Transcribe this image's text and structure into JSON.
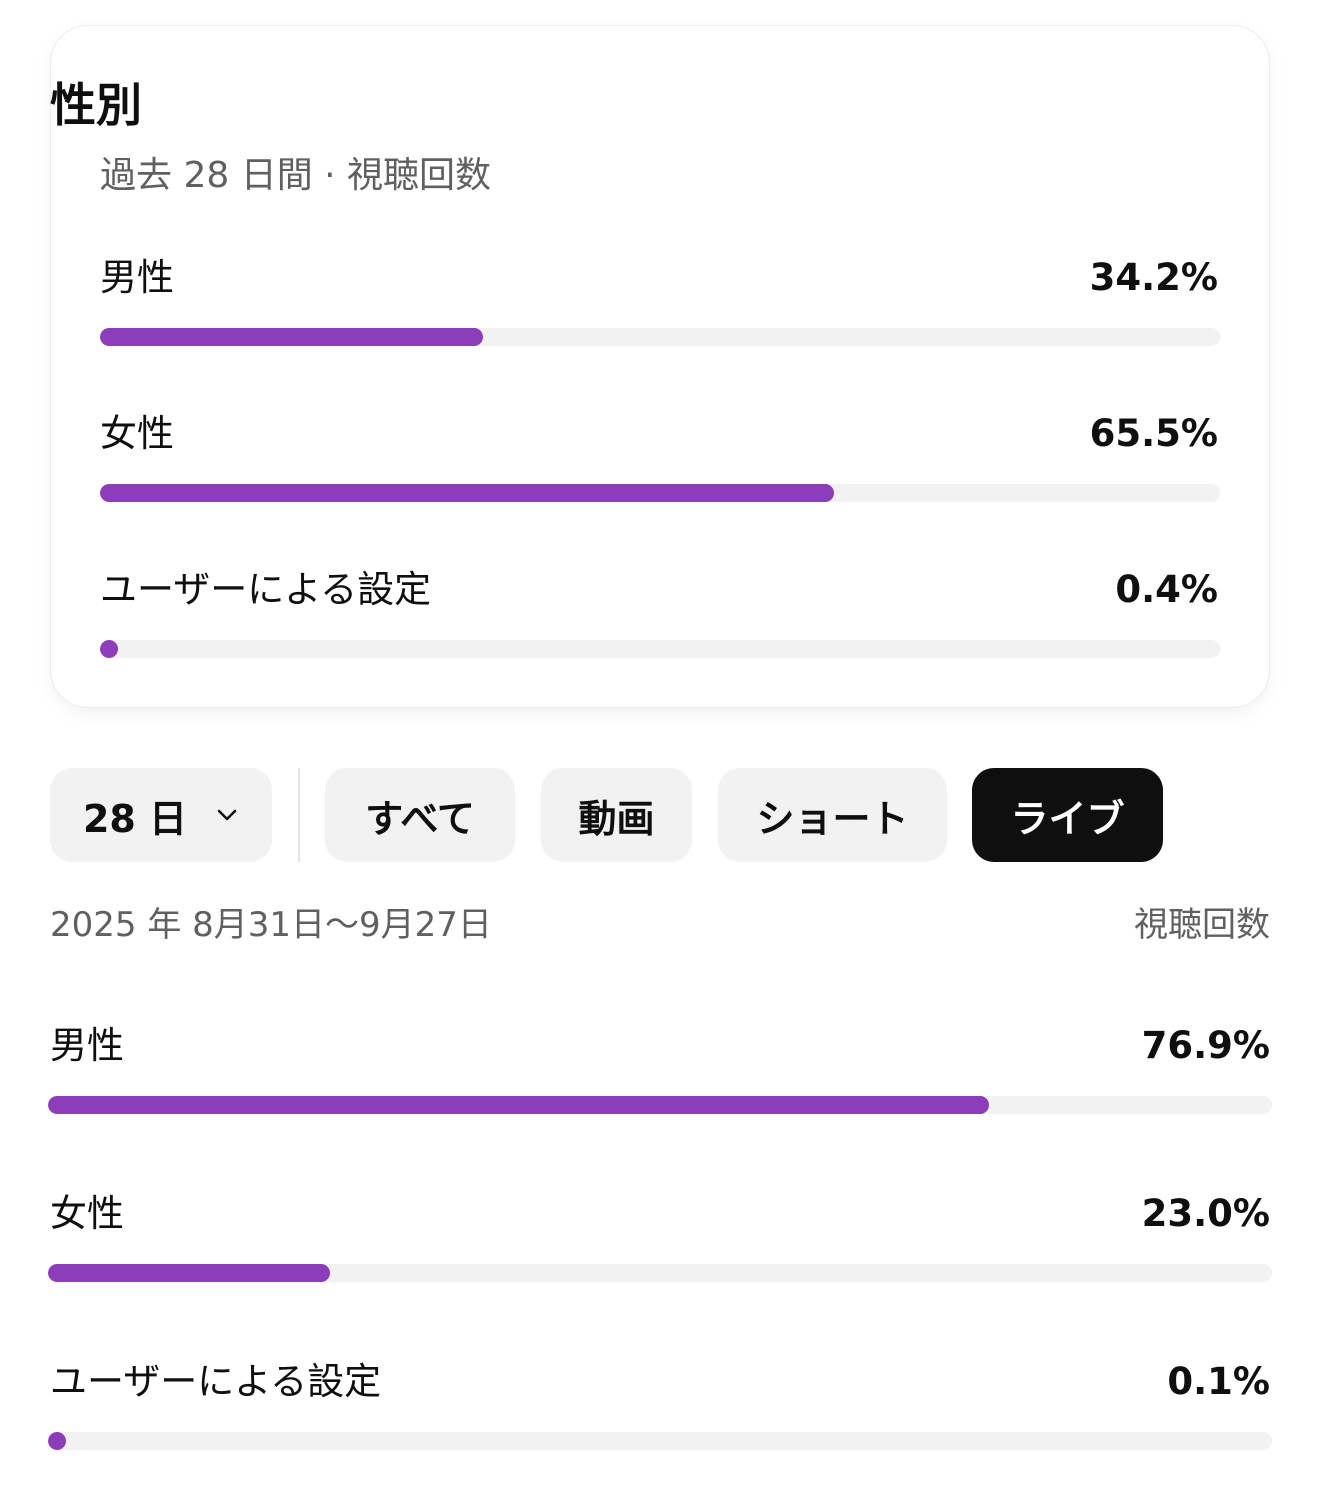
{
  "card": {
    "title": "性別",
    "subtitle": "過去 28 日間 · 視聴回数",
    "rows": [
      {
        "label": "男性",
        "value": "34.2%",
        "fraction": 0.342
      },
      {
        "label": "女性",
        "value": "65.5%",
        "fraction": 0.655
      },
      {
        "label": "ユーザーによる設定",
        "value": "0.4%",
        "fraction": 0.004
      }
    ]
  },
  "filters": {
    "period": "28 日",
    "period_icon": "chevron-down-icon",
    "tabs": [
      "すべて",
      "動画",
      "ショート",
      "ライブ"
    ],
    "active_tab": "ライブ"
  },
  "detail": {
    "date_range": "2025 年 8月31日〜9月27日",
    "metric": "視聴回数",
    "rows": [
      {
        "label": "男性",
        "value": "76.9%",
        "fraction": 0.769
      },
      {
        "label": "女性",
        "value": "23.0%",
        "fraction": 0.23
      },
      {
        "label": "ユーザーによる設定",
        "value": "0.1%",
        "fraction": 0.001
      }
    ]
  },
  "colors": {
    "bar_fill": "#8b3dba",
    "bar_track": "#f2f2f2",
    "active_chip": "#0f0f0f"
  }
}
